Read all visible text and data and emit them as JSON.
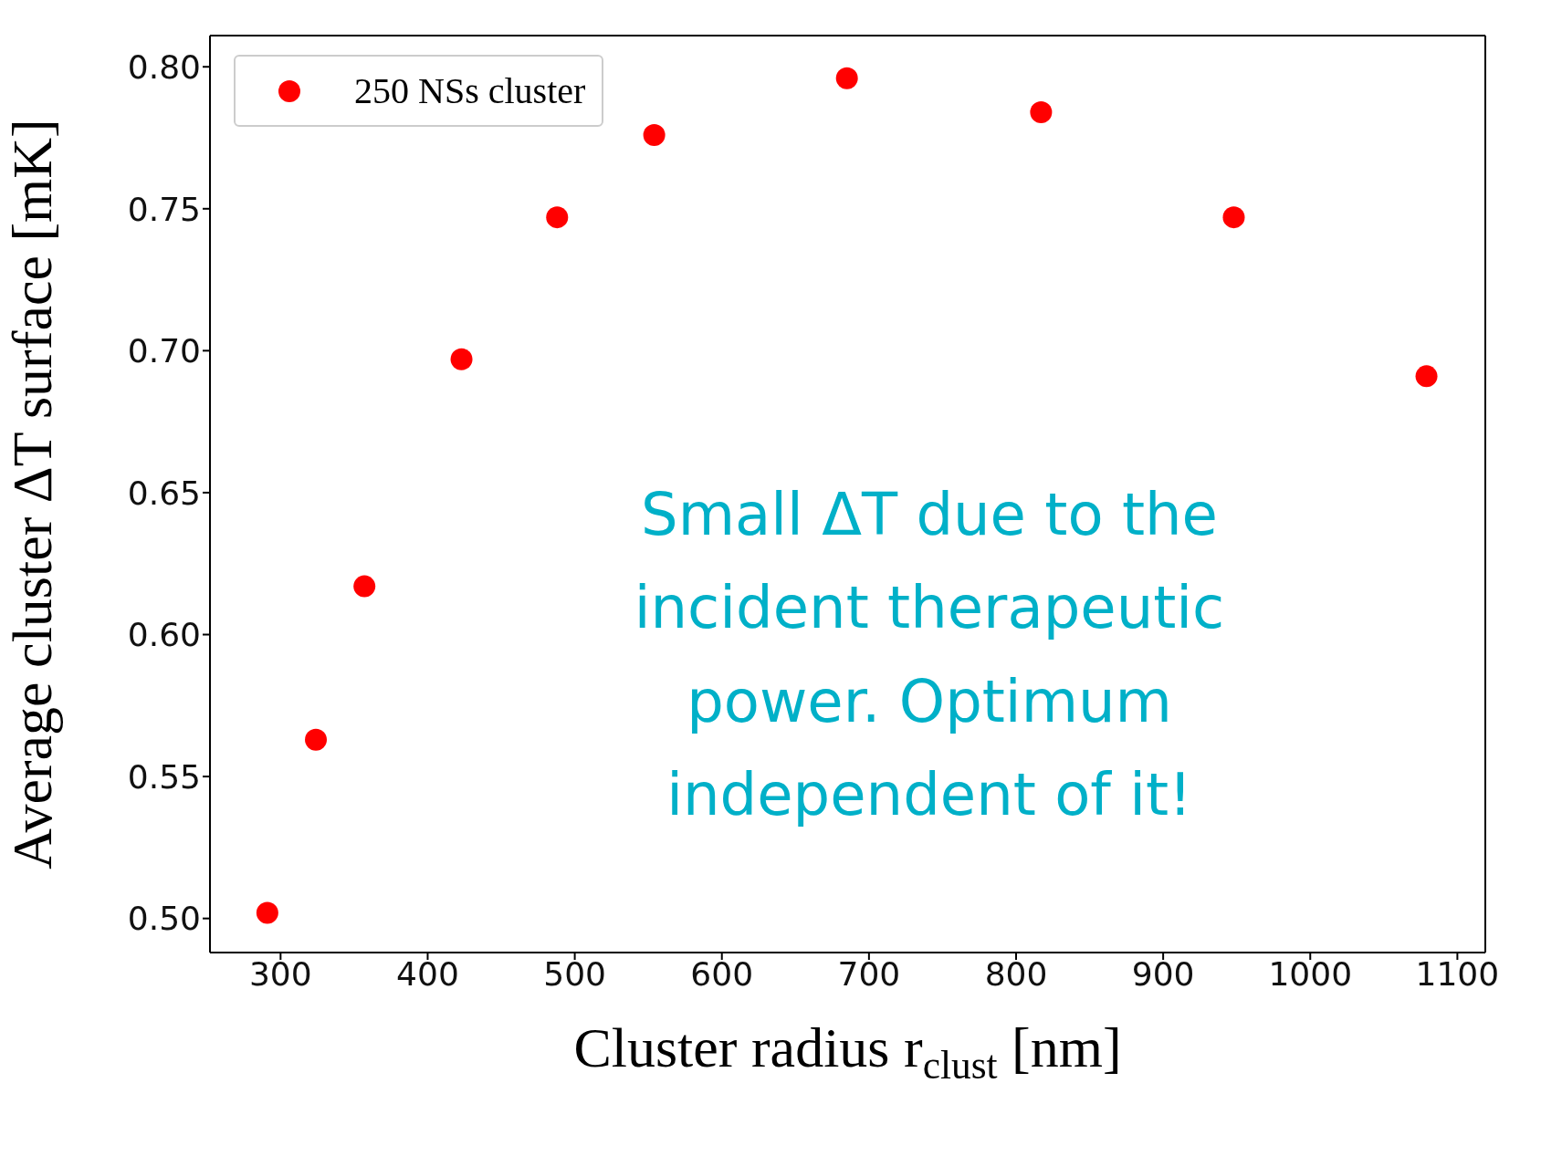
{
  "chart_data": {
    "type": "scatter",
    "xlabel": "Cluster radius r$_{clust}$ [nm]",
    "ylabel": "Average cluster ΔT surface [mK]",
    "x": [
      291,
      324,
      357,
      423,
      488,
      554,
      685,
      817,
      948,
      1079
    ],
    "series": [
      {
        "name": "250 NSs cluster",
        "color": "#ff0000",
        "values": [
          0.502,
          0.563,
          0.617,
          0.697,
          0.747,
          0.776,
          0.796,
          0.784,
          0.747,
          0.691
        ]
      }
    ],
    "xlim": [
      252,
      1119
    ],
    "xticks": [
      300,
      400,
      500,
      600,
      700,
      800,
      900,
      1000,
      1100
    ],
    "ylim": [
      0.488,
      0.811
    ],
    "yticks": [
      {
        "value": 0.5,
        "label": "0.50"
      },
      0.55,
      {
        "value": 0.6,
        "label": "0.60"
      },
      0.65,
      {
        "value": 0.7,
        "label": "0.70"
      },
      0.75,
      {
        "value": 0.8,
        "label": "0.80"
      }
    ],
    "annotations": [
      "Small ΔT due to the incident therapeutic power. Optimum independent of it!"
    ],
    "legend": "top left",
    "marker": "circle",
    "grid": false
  }
}
